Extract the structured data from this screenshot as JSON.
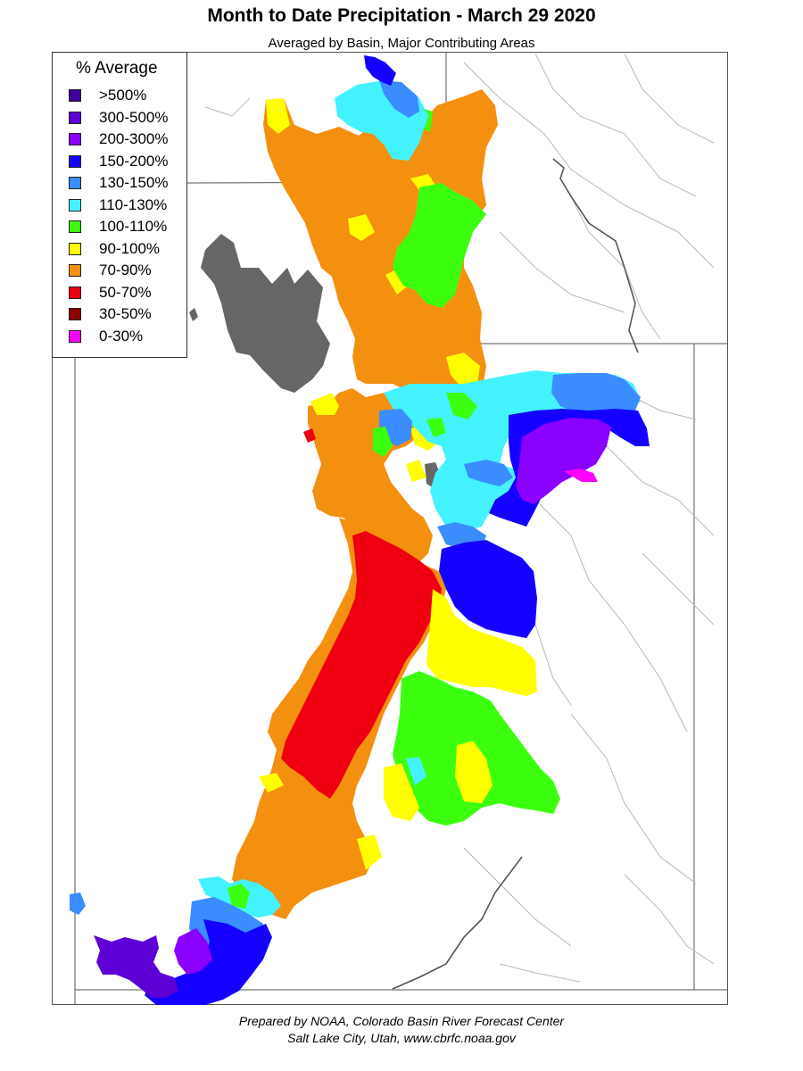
{
  "title": "Month to Date Precipitation - March 29 2020",
  "subtitle": "Averaged by Basin, Major Contributing Areas",
  "legend": {
    "title": "% Average",
    "items": [
      {
        "label": ">500%",
        "color": "#3d0099"
      },
      {
        "label": "300-500%",
        "color": "#5c00d6"
      },
      {
        "label": "200-300%",
        "color": "#8a00ff"
      },
      {
        "label": "150-200%",
        "color": "#1400ff"
      },
      {
        "label": "130-150%",
        "color": "#3a8cff"
      },
      {
        "label": "110-130%",
        "color": "#44f2ff"
      },
      {
        "label": "100-110%",
        "color": "#3cff10"
      },
      {
        "label": "90-100%",
        "color": "#ffff00"
      },
      {
        "label": "70-90%",
        "color": "#f39010"
      },
      {
        "label": "50-70%",
        "color": "#ee0010"
      },
      {
        "label": "30-50%",
        "color": "#8b0000"
      },
      {
        "label": "0-30%",
        "color": "#ff00ff"
      }
    ]
  },
  "colors": {
    "lake": "#666666",
    "state_border": "#555555",
    "river": "#b0b0b0",
    "river_dark": "#555555"
  },
  "footer": {
    "line1": "Prepared by NOAA, Colorado Basin River Forecast Center",
    "line2": "Salt Lake City, Utah, www.cbrfc.noaa.gov"
  }
}
